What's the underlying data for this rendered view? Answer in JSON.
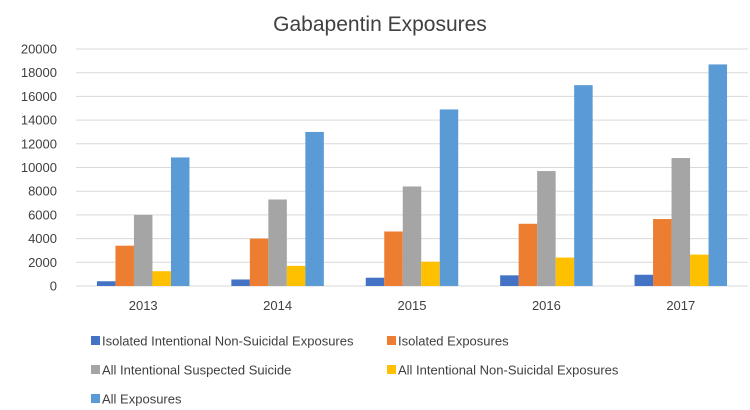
{
  "chart_data": {
    "type": "bar",
    "title": "Gabapentin Exposures",
    "xlabel": "",
    "ylabel": "",
    "categories": [
      "2013",
      "2014",
      "2015",
      "2016",
      "2017"
    ],
    "ylim": [
      0,
      20000
    ],
    "yticks": [
      0,
      2000,
      4000,
      6000,
      8000,
      10000,
      12000,
      14000,
      16000,
      18000,
      20000
    ],
    "grid": true,
    "legend_position": "bottom",
    "series": [
      {
        "name": "Isolated Intentional Non-Suicidal Exposures",
        "color": "#4472C4",
        "values": [
          400,
          550,
          700,
          900,
          950
        ]
      },
      {
        "name": "Isolated Exposures",
        "color": "#ED7D31",
        "values": [
          3400,
          4000,
          4600,
          5250,
          5650
        ]
      },
      {
        "name": "All Intentional Suspected Suicide",
        "color": "#A5A5A5",
        "values": [
          6000,
          7300,
          8400,
          9700,
          10800
        ]
      },
      {
        "name": "All Intentional Non-Suicidal Exposures",
        "color": "#FFC000",
        "values": [
          1250,
          1700,
          2050,
          2400,
          2650
        ]
      },
      {
        "name": "All Exposures",
        "color": "#5B9BD5",
        "values": [
          10850,
          13000,
          14900,
          16950,
          18700
        ]
      }
    ]
  }
}
